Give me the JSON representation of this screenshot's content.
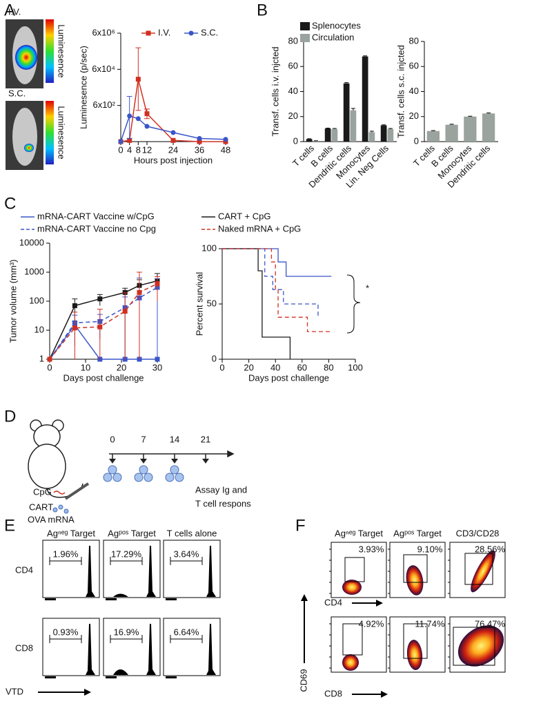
{
  "panel_labels": [
    "A",
    "B",
    "C",
    "D",
    "E",
    "F"
  ],
  "panel_a": {
    "image_labels": [
      "I.V.",
      "S.C."
    ],
    "colorbar_label": "Luminesence"
  },
  "chart_data": [
    {
      "type": "line",
      "ylog": true,
      "ylabel": "Luminesence (p/sec)",
      "xlabel": "Hours post  injection",
      "x": [
        0,
        4,
        8,
        12,
        24,
        36,
        48
      ],
      "xlim": [
        0,
        48
      ],
      "xticks": [
        0,
        4,
        8,
        12,
        24,
        36,
        48
      ],
      "ylim": [
        6,
        6000000
      ],
      "yticks": [
        {
          "value": 600,
          "label": "6x10²"
        },
        {
          "value": 60000,
          "label": "6x10⁴"
        },
        {
          "value": 6000000,
          "label": "6x10⁶"
        }
      ],
      "legend": "top",
      "series": [
        {
          "name": "I.V.",
          "color": "#d03020",
          "marker": "square",
          "values": [
            6,
            7,
            17000,
            210,
            7,
            6,
            6
          ],
          "error_low": [
            null,
            null,
            320,
            112,
            null,
            null,
            null
          ],
          "error_high": [
            null,
            null,
            930000,
            380,
            null,
            null,
            null
          ]
        },
        {
          "name": "S.C.",
          "color": "#3a55c8",
          "marker": "circle",
          "values": [
            6,
            158,
            112,
            42,
            19,
            9,
            8
          ],
          "error_low": [
            null,
            9,
            null,
            null,
            null,
            null,
            null
          ],
          "error_high": [
            null,
            1900,
            null,
            null,
            null,
            null,
            null
          ]
        }
      ]
    },
    {
      "type": "bar",
      "ylabel": "Transf. cells i.v. injcted",
      "categories": [
        "T cells",
        "B cells",
        "Dendritic cells",
        "Monocytes",
        "Lin. Neg Cells"
      ],
      "ylim": [
        0,
        80
      ],
      "yticks": [
        0,
        20,
        40,
        60,
        80
      ],
      "legend": "upper left",
      "series": [
        {
          "name": "Splenocytes",
          "color": "#1a1a1a",
          "values": [
            2,
            10.5,
            46.5,
            68,
            13
          ],
          "errors": [
            0.3,
            0.3,
            0.6,
            0.5,
            0.4
          ]
        },
        {
          "name": "Circulation",
          "color": "#9aa39e",
          "values": [
            0.5,
            10,
            25,
            7.5,
            10
          ],
          "errors": [
            0.2,
            0.5,
            1.5,
            0.8,
            0.5
          ]
        }
      ]
    },
    {
      "type": "bar",
      "ylabel": "Transf. cells s.c. injcted",
      "categories": [
        "T cells",
        "B cells",
        "Monocytes",
        "Dendritic cells"
      ],
      "ylim": [
        0,
        80
      ],
      "yticks": [
        0,
        20,
        40,
        60,
        80
      ],
      "series": [
        {
          "color": "#9aa39e",
          "values": [
            8.5,
            13.5,
            20,
            22.5
          ],
          "errors": [
            0.3,
            0.4,
            0.3,
            0.4
          ]
        }
      ]
    },
    {
      "type": "line",
      "ylog": true,
      "ylabel": "Tumor volume (mm³)",
      "xlabel": "Days post challenge",
      "x": [
        0,
        7,
        14,
        21,
        25,
        30
      ],
      "xlim": [
        0,
        30
      ],
      "xticks": [
        0,
        10,
        20,
        30
      ],
      "ylim": [
        1,
        10000
      ],
      "yticks": [
        1,
        10,
        100,
        1000,
        10000
      ],
      "legend": "above",
      "series": [
        {
          "name": "mRNA-CART Vaccine w/CpG",
          "color": "#3a55c8",
          "marker": "square",
          "dashed": false,
          "values": [
            1,
            15,
            1,
            1,
            1,
            1
          ],
          "errors": [
            null,
            5,
            null,
            null,
            null,
            null
          ]
        },
        {
          "name": "CART + CpG",
          "color": "#1a1a1a",
          "marker": "square",
          "dashed": false,
          "values": [
            1,
            70,
            120,
            200,
            350,
            500
          ],
          "errors": [
            null,
            50,
            50,
            80,
            200,
            400
          ]
        },
        {
          "name": "mRNA-CART Vaccine no Cpg",
          "color": "#3a55c8",
          "marker": "square",
          "dashed": true,
          "values": [
            1,
            18,
            20,
            60,
            130,
            300
          ],
          "errors": [
            null,
            15,
            15,
            80,
            500,
            300
          ]
        },
        {
          "name": "Naked mRNA + CpG",
          "color": "#d03020",
          "marker": "square",
          "dashed": true,
          "values": [
            1,
            12,
            13,
            45,
            200,
            400
          ],
          "errors": [
            null,
            30,
            40,
            150,
            800,
            300
          ]
        }
      ]
    },
    {
      "type": "step",
      "ylabel": "Percent survival",
      "xlabel": "Days post challenge",
      "xlim": [
        0,
        100
      ],
      "xticks": [
        0,
        20,
        40,
        60,
        80,
        100
      ],
      "ylim": [
        0,
        100
      ],
      "yticks": [
        0,
        50,
        100
      ],
      "annotation": "*",
      "series": [
        {
          "color": "#3a55c8",
          "dashed": false,
          "x": [
            0,
            42,
            48,
            82
          ],
          "values": [
            100,
            88,
            75,
            75
          ]
        },
        {
          "color": "#1a1a1a",
          "dashed": false,
          "x": [
            0,
            27,
            30,
            51
          ],
          "values": [
            100,
            80,
            20,
            0
          ]
        },
        {
          "color": "#3a55c8",
          "dashed": true,
          "x": [
            0,
            32,
            38,
            46,
            72
          ],
          "values": [
            100,
            75,
            63,
            50,
            38
          ]
        },
        {
          "color": "#d03020",
          "dashed": true,
          "x": [
            0,
            37,
            40,
            42,
            64,
            82
          ],
          "values": [
            100,
            88,
            63,
            38,
            25,
            25
          ]
        }
      ]
    }
  ],
  "panel_d": {
    "injection_labels": [
      "CpG",
      "CART",
      "OVA mRNA"
    ],
    "timeline": [
      "0",
      "7",
      "14",
      "21"
    ],
    "assay_label": [
      "Assay Ig and",
      "T cell respons"
    ]
  },
  "panel_e": {
    "columns": [
      "Agⁿᵉᵍ Target",
      "Agᵖᵒˢ Target",
      "T cells alone"
    ],
    "rows": [
      "CD4",
      "CD8"
    ],
    "gates": [
      [
        "1.96%",
        "17.29%",
        "3.64%"
      ],
      [
        "0.93%",
        "16.9%",
        "6.64%"
      ]
    ],
    "x_label": "VTD"
  },
  "panel_f": {
    "columns": [
      "Agⁿᵉᵍ Target",
      "Agᵖᵒˢ Target",
      "CD3/CD28"
    ],
    "gates": [
      [
        "3.93%",
        "9.10%",
        "28.56%"
      ],
      [
        "4.92%",
        "11.74%",
        "76.47%"
      ]
    ],
    "x_labels": [
      "CD4",
      "CD8"
    ],
    "y_label": "CD69"
  }
}
